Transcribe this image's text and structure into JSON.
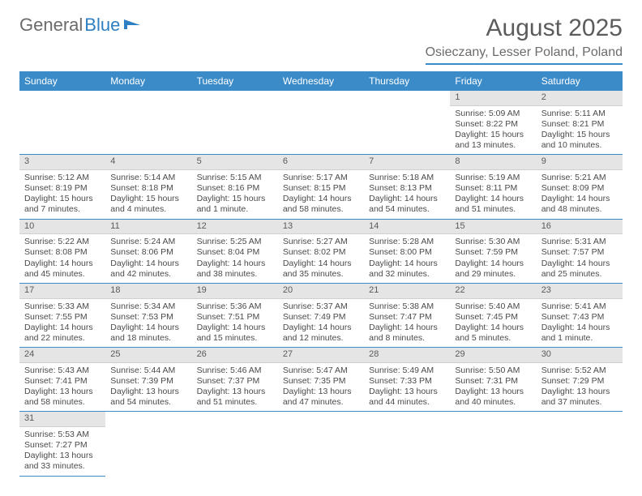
{
  "logo": {
    "text1": "General",
    "text2": "Blue"
  },
  "title": "August 2025",
  "location": "Osieczany, Lesser Poland, Poland",
  "dayNames": [
    "Sunday",
    "Monday",
    "Tuesday",
    "Wednesday",
    "Thursday",
    "Friday",
    "Saturday"
  ],
  "colors": {
    "headerBlue": "#3b8bc9",
    "dayNumBg": "#e5e5e5",
    "textGray": "#5c5c5c",
    "bodyText": "#4a4a4a"
  },
  "weeks": [
    [
      null,
      null,
      null,
      null,
      null,
      {
        "n": "1",
        "sunrise": "5:09 AM",
        "sunset": "8:22 PM",
        "daylight": "15 hours and 13 minutes."
      },
      {
        "n": "2",
        "sunrise": "5:11 AM",
        "sunset": "8:21 PM",
        "daylight": "15 hours and 10 minutes."
      }
    ],
    [
      {
        "n": "3",
        "sunrise": "5:12 AM",
        "sunset": "8:19 PM",
        "daylight": "15 hours and 7 minutes."
      },
      {
        "n": "4",
        "sunrise": "5:14 AM",
        "sunset": "8:18 PM",
        "daylight": "15 hours and 4 minutes."
      },
      {
        "n": "5",
        "sunrise": "5:15 AM",
        "sunset": "8:16 PM",
        "daylight": "15 hours and 1 minute."
      },
      {
        "n": "6",
        "sunrise": "5:17 AM",
        "sunset": "8:15 PM",
        "daylight": "14 hours and 58 minutes."
      },
      {
        "n": "7",
        "sunrise": "5:18 AM",
        "sunset": "8:13 PM",
        "daylight": "14 hours and 54 minutes."
      },
      {
        "n": "8",
        "sunrise": "5:19 AM",
        "sunset": "8:11 PM",
        "daylight": "14 hours and 51 minutes."
      },
      {
        "n": "9",
        "sunrise": "5:21 AM",
        "sunset": "8:09 PM",
        "daylight": "14 hours and 48 minutes."
      }
    ],
    [
      {
        "n": "10",
        "sunrise": "5:22 AM",
        "sunset": "8:08 PM",
        "daylight": "14 hours and 45 minutes."
      },
      {
        "n": "11",
        "sunrise": "5:24 AM",
        "sunset": "8:06 PM",
        "daylight": "14 hours and 42 minutes."
      },
      {
        "n": "12",
        "sunrise": "5:25 AM",
        "sunset": "8:04 PM",
        "daylight": "14 hours and 38 minutes."
      },
      {
        "n": "13",
        "sunrise": "5:27 AM",
        "sunset": "8:02 PM",
        "daylight": "14 hours and 35 minutes."
      },
      {
        "n": "14",
        "sunrise": "5:28 AM",
        "sunset": "8:00 PM",
        "daylight": "14 hours and 32 minutes."
      },
      {
        "n": "15",
        "sunrise": "5:30 AM",
        "sunset": "7:59 PM",
        "daylight": "14 hours and 29 minutes."
      },
      {
        "n": "16",
        "sunrise": "5:31 AM",
        "sunset": "7:57 PM",
        "daylight": "14 hours and 25 minutes."
      }
    ],
    [
      {
        "n": "17",
        "sunrise": "5:33 AM",
        "sunset": "7:55 PM",
        "daylight": "14 hours and 22 minutes."
      },
      {
        "n": "18",
        "sunrise": "5:34 AM",
        "sunset": "7:53 PM",
        "daylight": "14 hours and 18 minutes."
      },
      {
        "n": "19",
        "sunrise": "5:36 AM",
        "sunset": "7:51 PM",
        "daylight": "14 hours and 15 minutes."
      },
      {
        "n": "20",
        "sunrise": "5:37 AM",
        "sunset": "7:49 PM",
        "daylight": "14 hours and 12 minutes."
      },
      {
        "n": "21",
        "sunrise": "5:38 AM",
        "sunset": "7:47 PM",
        "daylight": "14 hours and 8 minutes."
      },
      {
        "n": "22",
        "sunrise": "5:40 AM",
        "sunset": "7:45 PM",
        "daylight": "14 hours and 5 minutes."
      },
      {
        "n": "23",
        "sunrise": "5:41 AM",
        "sunset": "7:43 PM",
        "daylight": "14 hours and 1 minute."
      }
    ],
    [
      {
        "n": "24",
        "sunrise": "5:43 AM",
        "sunset": "7:41 PM",
        "daylight": "13 hours and 58 minutes."
      },
      {
        "n": "25",
        "sunrise": "5:44 AM",
        "sunset": "7:39 PM",
        "daylight": "13 hours and 54 minutes."
      },
      {
        "n": "26",
        "sunrise": "5:46 AM",
        "sunset": "7:37 PM",
        "daylight": "13 hours and 51 minutes."
      },
      {
        "n": "27",
        "sunrise": "5:47 AM",
        "sunset": "7:35 PM",
        "daylight": "13 hours and 47 minutes."
      },
      {
        "n": "28",
        "sunrise": "5:49 AM",
        "sunset": "7:33 PM",
        "daylight": "13 hours and 44 minutes."
      },
      {
        "n": "29",
        "sunrise": "5:50 AM",
        "sunset": "7:31 PM",
        "daylight": "13 hours and 40 minutes."
      },
      {
        "n": "30",
        "sunrise": "5:52 AM",
        "sunset": "7:29 PM",
        "daylight": "13 hours and 37 minutes."
      }
    ],
    [
      {
        "n": "31",
        "sunrise": "5:53 AM",
        "sunset": "7:27 PM",
        "daylight": "13 hours and 33 minutes."
      },
      null,
      null,
      null,
      null,
      null,
      null
    ]
  ],
  "labels": {
    "sunrise": "Sunrise:",
    "sunset": "Sunset:",
    "daylight": "Daylight:"
  }
}
